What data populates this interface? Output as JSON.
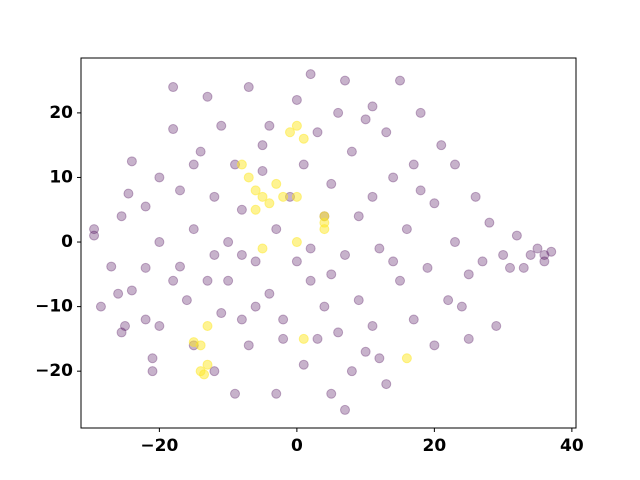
{
  "chart_data": {
    "type": "scatter",
    "xlim": [
      -31.4,
      40.6
    ],
    "ylim": [
      -28.8,
      28.5
    ],
    "xticks": [
      {
        "value": -20,
        "label": "−20"
      },
      0,
      20,
      40
    ],
    "yticks": [
      {
        "value": -20,
        "label": "−20"
      },
      {
        "value": -10,
        "label": "−10"
      },
      0,
      10,
      20
    ],
    "series": [
      {
        "color": "#440154",
        "opacity": 0.3,
        "x": [
          -29.5,
          -29.5,
          -27,
          -28.5,
          -26,
          -25.5,
          -25,
          -24,
          -25.5,
          -24.5,
          -24,
          -22,
          -22,
          -21,
          -21,
          -20,
          -20,
          -20,
          -18,
          -18,
          -17,
          -17,
          -16,
          -15,
          -15,
          -14,
          -13,
          -12,
          -12,
          -11,
          -10,
          -10,
          -9,
          -9,
          -8,
          -8,
          -7,
          -7,
          -6,
          -5,
          -4,
          -4,
          -3,
          -3,
          -2,
          -1,
          0,
          0,
          1,
          1,
          2,
          2,
          3,
          4,
          4,
          5,
          5,
          6,
          7,
          7,
          7,
          8,
          9,
          9,
          10,
          10,
          11,
          11,
          12,
          13,
          13,
          14,
          15,
          15,
          16,
          17,
          17,
          18,
          19,
          20,
          20,
          21,
          22,
          23,
          23,
          25,
          25,
          26,
          27,
          28,
          29,
          30,
          31,
          32,
          33,
          34,
          35,
          36,
          36,
          37,
          -6,
          -2,
          3,
          -13,
          -18,
          8,
          12,
          -11,
          6,
          -5,
          -15,
          18,
          14,
          -8,
          2,
          -22,
          24,
          11,
          -12,
          5
        ],
        "y": [
          2,
          1,
          -3.8,
          -10,
          -8,
          -14,
          -13,
          -7.5,
          4,
          7.5,
          12.5,
          -4,
          5.5,
          -20,
          -18,
          -13,
          0,
          10,
          24,
          17.5,
          -3.8,
          8,
          -9,
          2,
          -16,
          14,
          22.5,
          -20,
          7,
          18,
          -6,
          0,
          -23.5,
          12,
          -12,
          5,
          24,
          -16,
          -3,
          11,
          18,
          -8,
          -23.5,
          2,
          -12,
          7,
          22,
          -3,
          -19,
          12,
          26,
          -6,
          17,
          -10,
          4,
          -23.5,
          9,
          -14,
          25,
          -26,
          -2,
          14,
          -9,
          4,
          19,
          -17,
          -13,
          7,
          -1,
          17,
          -22,
          10,
          -6,
          25,
          2,
          12,
          -12,
          20,
          -4,
          6,
          -16,
          15,
          -9,
          12,
          0,
          -5,
          -15,
          7,
          -3,
          3,
          -13,
          -2,
          -4,
          1,
          -4,
          -2,
          -1,
          -3,
          -2,
          -1.5,
          -10,
          -15,
          -15,
          -6,
          -6,
          -20,
          -18,
          -11,
          20,
          15,
          12,
          8,
          -3,
          -2,
          -1,
          -12,
          -10,
          21,
          -2,
          -5
        ]
      },
      {
        "color": "#fde725",
        "opacity": 0.5,
        "x": [
          -13,
          -15,
          -14,
          -13,
          -14,
          -13.5,
          -8,
          -7,
          -6,
          -5,
          -4,
          -6,
          -3,
          -2,
          0,
          -1,
          0,
          1,
          4,
          4,
          4,
          0,
          16,
          1,
          -5
        ],
        "y": [
          -13,
          -15.5,
          -16,
          -19,
          -20,
          -20.5,
          12,
          10,
          8,
          7,
          6,
          5,
          9,
          7,
          7,
          17,
          18,
          16,
          3,
          2,
          4,
          0,
          -18,
          -15,
          -1
        ]
      }
    ]
  }
}
